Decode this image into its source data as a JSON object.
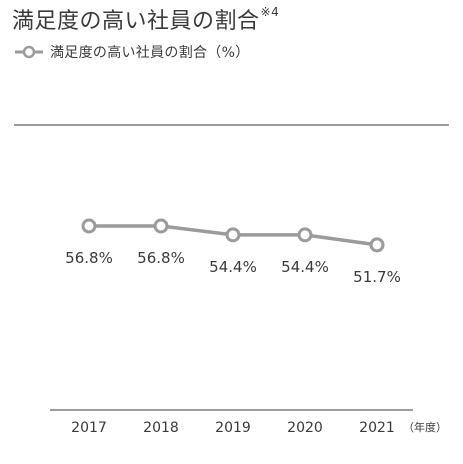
{
  "title": "満足度の高い社員の割合",
  "title_note": "※4",
  "legend_label": "満足度の高い社員の割合（%）",
  "colors": {
    "line": "#9b9b9b",
    "marker_fill": "#ffffff",
    "axis": "#3a3a3a",
    "text": "#3a3a3a"
  },
  "chart_data": {
    "type": "line",
    "title": "満足度の高い社員の割合",
    "categories": [
      "2017",
      "2018",
      "2019",
      "2020",
      "2021"
    ],
    "x_unit_label": "（年度）",
    "series": [
      {
        "name": "満足度の高い社員の割合（%）",
        "values": [
          56.8,
          56.8,
          54.4,
          54.4,
          51.7
        ],
        "labels": [
          "56.8%",
          "56.8%",
          "54.4%",
          "54.4%",
          "51.7%"
        ]
      }
    ],
    "ylim": [
      0,
      100
    ],
    "grid": false,
    "legend_position": "top-left"
  }
}
